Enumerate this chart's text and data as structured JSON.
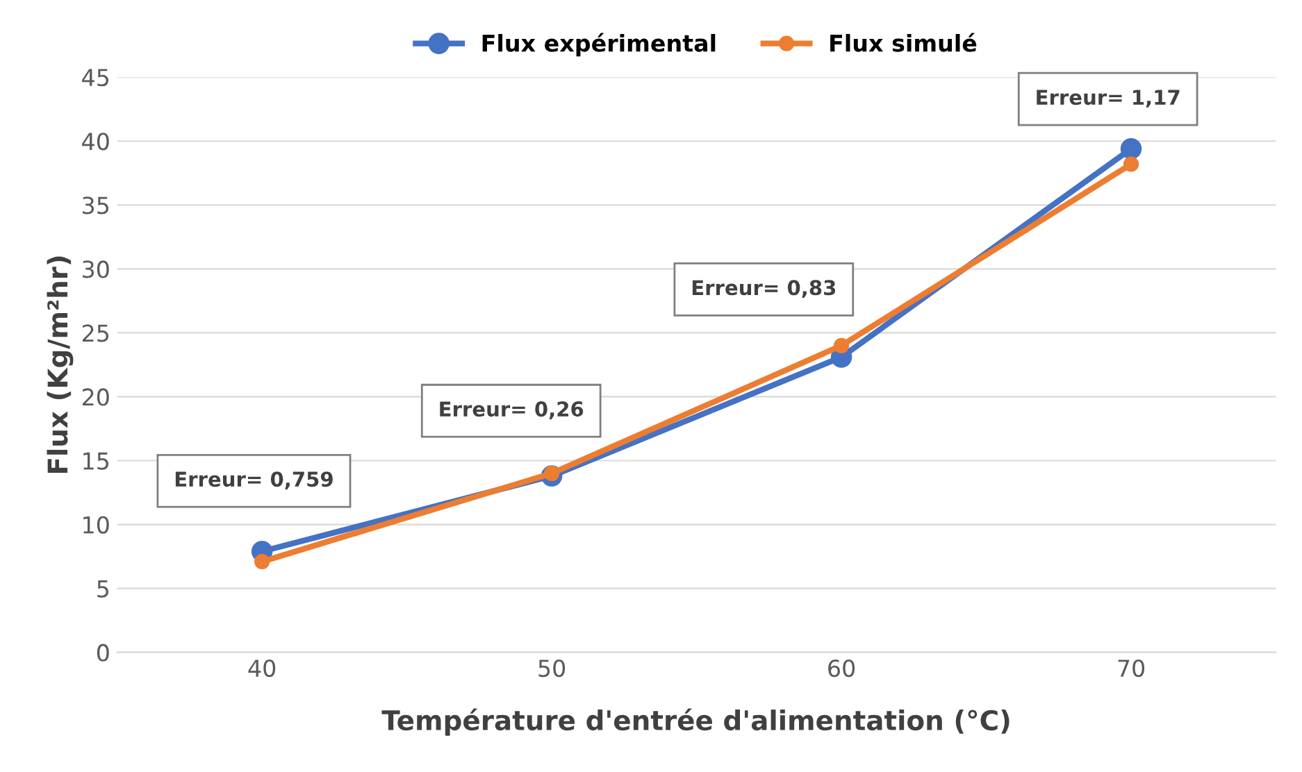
{
  "chart_data": {
    "type": "line",
    "xlabel": "Température d'entrée d'alimentation (°C)",
    "ylabel": "Flux (Kg/m²hr)",
    "categories": [
      "40",
      "50",
      "60",
      "70"
    ],
    "series": [
      {
        "name": "Flux expérimental",
        "color": "#4472c4",
        "values": [
          7.9,
          13.8,
          23.1,
          39.4
        ]
      },
      {
        "name": "Flux simulé",
        "color": "#ed7d31",
        "values": [
          7.1,
          14.0,
          24.0,
          38.2
        ]
      }
    ],
    "ylim": [
      0,
      45
    ],
    "yticks": [
      0,
      5,
      10,
      15,
      20,
      25,
      30,
      35,
      40,
      45
    ],
    "grid": "y",
    "legend": "top",
    "marker": "circle",
    "line_style": "solid",
    "annotations": [
      "Erreur= 0,759",
      "Erreur= 0,26",
      "Erreur= 0,83",
      "Erreur= 1,17"
    ]
  }
}
